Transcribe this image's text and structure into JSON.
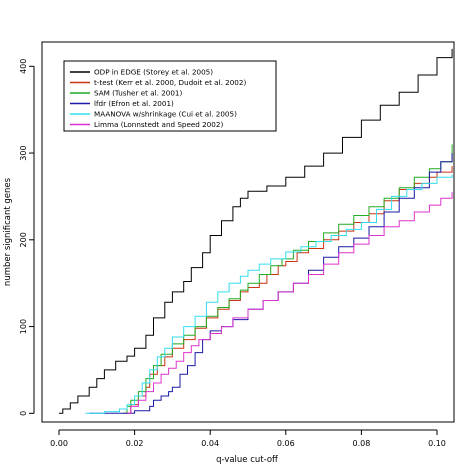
{
  "chart_data": {
    "type": "line",
    "title": "",
    "xlabel": "q-value cut-off",
    "ylabel": "number significant genes",
    "xlim": [
      -0.0045,
      0.1045
    ],
    "ylim": [
      -10,
      428
    ],
    "x_ticks": [
      0.0,
      0.02,
      0.04,
      0.06,
      0.08,
      0.1
    ],
    "x_tick_labels": [
      "0.00",
      "0.02",
      "0.04",
      "0.06",
      "0.08",
      "0.10"
    ],
    "y_ticks": [
      0,
      100,
      200,
      300,
      400
    ],
    "y_tick_labels": [
      "0",
      "100",
      "200",
      "300",
      "400"
    ],
    "legend_position": "top-left",
    "grid": false,
    "series": [
      {
        "name": "ODP in EDGE (Storey et al. 2005)",
        "color": "#000000",
        "points": [
          [
            0.0,
            0
          ],
          [
            0.001,
            5
          ],
          [
            0.003,
            12
          ],
          [
            0.005,
            20
          ],
          [
            0.008,
            30
          ],
          [
            0.01,
            40
          ],
          [
            0.012,
            50
          ],
          [
            0.015,
            60
          ],
          [
            0.018,
            66
          ],
          [
            0.02,
            75
          ],
          [
            0.023,
            90
          ],
          [
            0.025,
            110
          ],
          [
            0.028,
            128
          ],
          [
            0.03,
            140
          ],
          [
            0.033,
            152
          ],
          [
            0.035,
            168
          ],
          [
            0.038,
            185
          ],
          [
            0.04,
            205
          ],
          [
            0.043,
            222
          ],
          [
            0.046,
            238
          ],
          [
            0.048,
            248
          ],
          [
            0.05,
            256
          ],
          [
            0.055,
            262
          ],
          [
            0.06,
            272
          ],
          [
            0.065,
            285
          ],
          [
            0.07,
            300
          ],
          [
            0.075,
            318
          ],
          [
            0.08,
            338
          ],
          [
            0.085,
            355
          ],
          [
            0.09,
            370
          ],
          [
            0.095,
            390
          ],
          [
            0.1,
            410
          ],
          [
            0.104,
            420
          ]
        ]
      },
      {
        "name": "t-test (Kerr et al. 2000, Dudoit et al. 2002)",
        "color": "#cc3311",
        "points": [
          [
            0.018,
            0
          ],
          [
            0.019,
            10
          ],
          [
            0.021,
            20
          ],
          [
            0.023,
            30
          ],
          [
            0.024,
            45
          ],
          [
            0.026,
            55
          ],
          [
            0.028,
            65
          ],
          [
            0.03,
            75
          ],
          [
            0.033,
            85
          ],
          [
            0.036,
            98
          ],
          [
            0.039,
            110
          ],
          [
            0.042,
            120
          ],
          [
            0.045,
            130
          ],
          [
            0.048,
            140
          ],
          [
            0.05,
            145
          ],
          [
            0.053,
            150
          ],
          [
            0.055,
            160
          ],
          [
            0.058,
            170
          ],
          [
            0.06,
            175
          ],
          [
            0.063,
            185
          ],
          [
            0.066,
            190
          ],
          [
            0.07,
            200
          ],
          [
            0.074,
            210
          ],
          [
            0.078,
            220
          ],
          [
            0.082,
            230
          ],
          [
            0.086,
            245
          ],
          [
            0.09,
            258
          ],
          [
            0.094,
            265
          ],
          [
            0.098,
            272
          ],
          [
            0.1,
            278
          ],
          [
            0.104,
            285
          ]
        ]
      },
      {
        "name": "SAM (Tusher et al. 2001)",
        "color": "#22aa22",
        "points": [
          [
            0.017,
            0
          ],
          [
            0.018,
            8
          ],
          [
            0.019,
            15
          ],
          [
            0.021,
            25
          ],
          [
            0.023,
            40
          ],
          [
            0.025,
            55
          ],
          [
            0.027,
            68
          ],
          [
            0.03,
            80
          ],
          [
            0.033,
            90
          ],
          [
            0.036,
            100
          ],
          [
            0.039,
            112
          ],
          [
            0.042,
            122
          ],
          [
            0.045,
            132
          ],
          [
            0.048,
            142
          ],
          [
            0.05,
            150
          ],
          [
            0.053,
            160
          ],
          [
            0.056,
            170
          ],
          [
            0.059,
            178
          ],
          [
            0.062,
            188
          ],
          [
            0.066,
            198
          ],
          [
            0.07,
            208
          ],
          [
            0.074,
            218
          ],
          [
            0.078,
            228
          ],
          [
            0.082,
            238
          ],
          [
            0.086,
            248
          ],
          [
            0.09,
            260
          ],
          [
            0.094,
            272
          ],
          [
            0.098,
            282
          ],
          [
            0.101,
            290
          ],
          [
            0.104,
            310
          ]
        ]
      },
      {
        "name": "lfdr (Efron et al. 2001)",
        "color": "#1a1aa6",
        "points": [
          [
            0.008,
            0
          ],
          [
            0.015,
            0
          ],
          [
            0.02,
            3
          ],
          [
            0.024,
            8
          ],
          [
            0.025,
            15
          ],
          [
            0.027,
            20
          ],
          [
            0.029,
            25
          ],
          [
            0.03,
            30
          ],
          [
            0.032,
            45
          ],
          [
            0.034,
            55
          ],
          [
            0.036,
            70
          ],
          [
            0.038,
            85
          ],
          [
            0.04,
            95
          ],
          [
            0.043,
            100
          ],
          [
            0.046,
            108
          ],
          [
            0.05,
            120
          ],
          [
            0.054,
            130
          ],
          [
            0.058,
            140
          ],
          [
            0.062,
            150
          ],
          [
            0.066,
            165
          ],
          [
            0.07,
            180
          ],
          [
            0.074,
            192
          ],
          [
            0.078,
            202
          ],
          [
            0.082,
            215
          ],
          [
            0.086,
            232
          ],
          [
            0.09,
            248
          ],
          [
            0.094,
            260
          ],
          [
            0.098,
            278
          ],
          [
            0.101,
            290
          ],
          [
            0.104,
            300
          ]
        ]
      },
      {
        "name": "MAANOVA w/shrinkage (Cui et al. 2005)",
        "color": "#33ddee",
        "points": [
          [
            0.007,
            0
          ],
          [
            0.012,
            2
          ],
          [
            0.016,
            5
          ],
          [
            0.018,
            10
          ],
          [
            0.02,
            20
          ],
          [
            0.022,
            35
          ],
          [
            0.024,
            50
          ],
          [
            0.026,
            65
          ],
          [
            0.028,
            75
          ],
          [
            0.03,
            88
          ],
          [
            0.033,
            100
          ],
          [
            0.036,
            112
          ],
          [
            0.039,
            128
          ],
          [
            0.042,
            140
          ],
          [
            0.045,
            150
          ],
          [
            0.048,
            158
          ],
          [
            0.05,
            165
          ],
          [
            0.053,
            172
          ],
          [
            0.056,
            178
          ],
          [
            0.06,
            186
          ],
          [
            0.064,
            192
          ],
          [
            0.068,
            198
          ],
          [
            0.072,
            205
          ],
          [
            0.076,
            212
          ],
          [
            0.08,
            220
          ],
          [
            0.084,
            235
          ],
          [
            0.088,
            250
          ],
          [
            0.092,
            258
          ],
          [
            0.096,
            265
          ],
          [
            0.1,
            272
          ],
          [
            0.104,
            275
          ]
        ]
      },
      {
        "name": "Limma (Lonnstedt and Speed 2002)",
        "color": "#dd33cc",
        "points": [
          [
            0.018,
            0
          ],
          [
            0.019,
            8
          ],
          [
            0.021,
            15
          ],
          [
            0.023,
            25
          ],
          [
            0.025,
            35
          ],
          [
            0.027,
            45
          ],
          [
            0.029,
            52
          ],
          [
            0.031,
            60
          ],
          [
            0.033,
            70
          ],
          [
            0.035,
            78
          ],
          [
            0.037,
            85
          ],
          [
            0.04,
            92
          ],
          [
            0.043,
            100
          ],
          [
            0.046,
            110
          ],
          [
            0.05,
            120
          ],
          [
            0.054,
            130
          ],
          [
            0.058,
            140
          ],
          [
            0.062,
            150
          ],
          [
            0.066,
            160
          ],
          [
            0.07,
            172
          ],
          [
            0.074,
            185
          ],
          [
            0.078,
            195
          ],
          [
            0.082,
            205
          ],
          [
            0.086,
            215
          ],
          [
            0.09,
            222
          ],
          [
            0.094,
            232
          ],
          [
            0.098,
            240
          ],
          [
            0.101,
            248
          ],
          [
            0.104,
            255
          ]
        ]
      }
    ]
  }
}
